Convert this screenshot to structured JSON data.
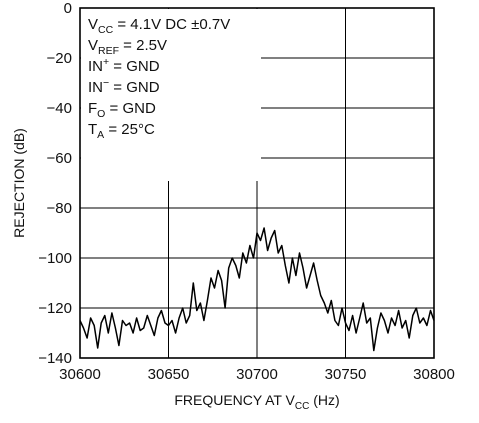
{
  "chart_data": {
    "type": "line",
    "title": "",
    "xlabel": {
      "main": "FREQUENCY AT V",
      "sub": "CC",
      "unit": " (Hz)"
    },
    "ylabel": "REJECTION (dB)",
    "xlim": [
      30600,
      30800
    ],
    "ylim": [
      -140,
      0
    ],
    "xticks": [
      30600,
      30650,
      30700,
      30750,
      30800
    ],
    "yticks": [
      0,
      -20,
      -40,
      -60,
      -80,
      -100,
      -120,
      -140
    ],
    "xtick_labels": [
      "30600",
      "30650",
      "30700",
      "30750",
      "30800"
    ],
    "ytick_labels": [
      "0",
      "−20",
      "−40",
      "−60",
      "−80",
      "−100",
      "−120",
      "−140"
    ],
    "grid": true,
    "annotations": [
      {
        "main": "V",
        "sub": "CC",
        "rest": " = 4.1V DC ±0.7V"
      },
      {
        "main": "V",
        "sub": "REF",
        "rest": " = 2.5V"
      },
      {
        "main": "IN",
        "sup": "+",
        "rest": " = GND"
      },
      {
        "main": "IN",
        "sup": "−",
        "rest": " = GND"
      },
      {
        "main": "F",
        "sub": "O",
        "rest": " = GND"
      },
      {
        "main": "T",
        "sub": "A",
        "rest": " = 25°C"
      }
    ],
    "series": [
      {
        "color": "#000000",
        "x": [
          30600,
          30602,
          30604,
          30606,
          30608,
          30610,
          30612,
          30614,
          30616,
          30618,
          30620,
          30622,
          30624,
          30626,
          30628,
          30630,
          30632,
          30634,
          30636,
          30638,
          30640,
          30642,
          30644,
          30646,
          30648,
          30650,
          30652,
          30654,
          30656,
          30658,
          30660,
          30662,
          30664,
          30666,
          30668,
          30670,
          30672,
          30674,
          30676,
          30678,
          30680,
          30682,
          30684,
          30686,
          30688,
          30690,
          30692,
          30694,
          30696,
          30698,
          30700,
          30702,
          30704,
          30706,
          30708,
          30710,
          30712,
          30714,
          30716,
          30718,
          30720,
          30722,
          30724,
          30726,
          30728,
          30730,
          30732,
          30734,
          30736,
          30738,
          30740,
          30742,
          30744,
          30746,
          30748,
          30750,
          30752,
          30754,
          30756,
          30758,
          30760,
          30762,
          30764,
          30766,
          30768,
          30770,
          30772,
          30774,
          30776,
          30778,
          30780,
          30782,
          30784,
          30786,
          30788,
          30790,
          30792,
          30794,
          30796,
          30798,
          30800
        ],
        "y": [
          -125,
          -128,
          -132,
          -124,
          -127,
          -136,
          -126,
          -123,
          -130,
          -122,
          -128,
          -135,
          -125,
          -127,
          -126,
          -130,
          -124,
          -129,
          -128,
          -123,
          -127,
          -131,
          -124,
          -121,
          -126,
          -127,
          -125,
          -130,
          -124,
          -120,
          -126,
          -123,
          -110,
          -121,
          -118,
          -125,
          -117,
          -108,
          -112,
          -105,
          -109,
          -120,
          -104,
          -100,
          -103,
          -108,
          -98,
          -102,
          -95,
          -100,
          -90,
          -93,
          -88,
          -97,
          -92,
          -89,
          -98,
          -95,
          -103,
          -110,
          -100,
          -107,
          -98,
          -104,
          -112,
          -107,
          -102,
          -109,
          -115,
          -118,
          -122,
          -117,
          -125,
          -127,
          -120,
          -126,
          -129,
          -123,
          -130,
          -124,
          -118,
          -126,
          -124,
          -137,
          -128,
          -122,
          -125,
          -130,
          -124,
          -127,
          -121,
          -128,
          -125,
          -132,
          -123,
          -120,
          -126,
          -124,
          -127,
          -121,
          -125
        ]
      }
    ]
  }
}
